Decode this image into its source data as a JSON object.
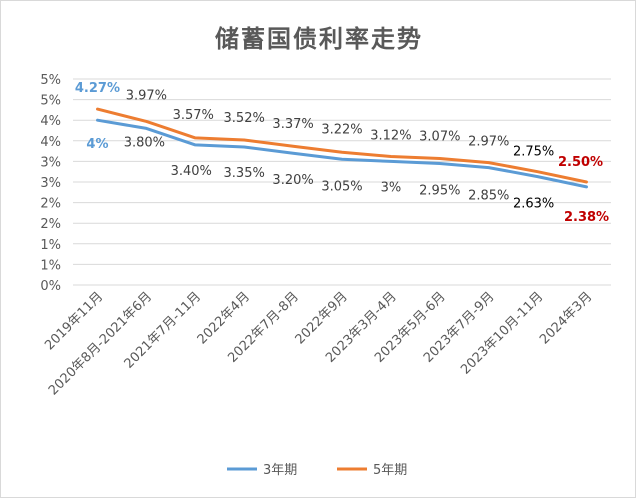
{
  "chart_data": {
    "type": "line",
    "title": "储蓄国债利率走势",
    "categories": [
      "2019年11月",
      "2020年8月-2021年6月",
      "2021年7月-11月",
      "2022年4月",
      "2022年7月-8月",
      "2022年9月",
      "2023年3月-4月",
      "2023年5月-6月",
      "2023年7月-9月",
      "2023年10月-11月",
      "2024年3月"
    ],
    "yticks": [
      "0%",
      "1%",
      "1%",
      "2%",
      "2%",
      "3%",
      "3%",
      "4%",
      "4%",
      "5%",
      "5%"
    ],
    "ylim": [
      0,
      5.0
    ],
    "grid": true,
    "legend_position": "bottom",
    "series": [
      {
        "name": "3年期",
        "color": "#5b9bd5",
        "values": [
          4.0,
          3.8,
          3.4,
          3.35,
          3.2,
          3.05,
          3.0,
          2.95,
          2.85,
          2.63,
          2.38
        ],
        "labels": [
          "4%",
          "3.80%",
          "3.40%",
          "3.35%",
          "3.20%",
          "3.05%",
          "3%",
          "2.95%",
          "2.85%",
          "2.63%",
          "2.38%"
        ],
        "label_colors": [
          "#5b9bd5",
          "#404040",
          "#404040",
          "#404040",
          "#404040",
          "#404040",
          "#404040",
          "#404040",
          "#404040",
          "#000000",
          "#c00000"
        ],
        "label_bold": [
          true,
          false,
          false,
          false,
          false,
          false,
          false,
          false,
          false,
          false,
          true
        ]
      },
      {
        "name": "5年期",
        "color": "#ed7d31",
        "values": [
          4.27,
          3.97,
          3.57,
          3.52,
          3.37,
          3.22,
          3.12,
          3.07,
          2.97,
          2.75,
          2.5
        ],
        "labels": [
          "4.27%",
          "3.97%",
          "3.57%",
          "3.52%",
          "3.37%",
          "3.22%",
          "3.12%",
          "3.07%",
          "2.97%",
          "2.75%",
          "2.50%"
        ],
        "label_colors": [
          "#5b9bd5",
          "#404040",
          "#404040",
          "#404040",
          "#404040",
          "#404040",
          "#404040",
          "#404040",
          "#404040",
          "#000000",
          "#c00000"
        ],
        "label_bold": [
          true,
          false,
          false,
          false,
          false,
          false,
          false,
          false,
          false,
          false,
          true
        ]
      }
    ],
    "colors": {
      "grid": "#d9d9d9",
      "axis_text": "#595959"
    }
  }
}
